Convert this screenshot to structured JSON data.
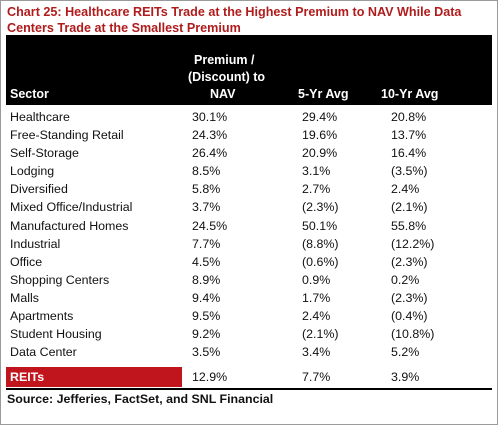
{
  "title": {
    "line1": "Chart 25: Healthcare REITs Trade at the Highest Premium to NAV While Data",
    "line2": "Centers Trade at the Smallest Premium"
  },
  "table": {
    "headers": {
      "sector": "Sector",
      "premium_line1": "Premium /",
      "premium_line2": "(Discount) to",
      "premium_line3": "NAV",
      "five_yr": "5-Yr Avg",
      "ten_yr": "10-Yr Avg"
    },
    "rows": [
      {
        "sector": "Healthcare",
        "premium": "30.1%",
        "five_yr": "29.4%",
        "ten_yr": "20.8%"
      },
      {
        "sector": "Free-Standing Retail",
        "premium": "24.3%",
        "five_yr": "19.6%",
        "ten_yr": "13.7%"
      },
      {
        "sector": "Self-Storage",
        "premium": "26.4%",
        "five_yr": "20.9%",
        "ten_yr": "16.4%"
      },
      {
        "sector": "Lodging",
        "premium": "8.5%",
        "five_yr": "3.1%",
        "ten_yr": "(3.5%)"
      },
      {
        "sector": "Diversified",
        "premium": "5.8%",
        "five_yr": "2.7%",
        "ten_yr": "2.4%"
      },
      {
        "sector": "Mixed Office/Industrial",
        "premium": "3.7%",
        "five_yr": "(2.3%)",
        "ten_yr": "(2.1%)"
      },
      {
        "sector": "Manufactured Homes",
        "premium": "24.5%",
        "five_yr": "50.1%",
        "ten_yr": "55.8%"
      },
      {
        "sector": "Industrial",
        "premium": "7.7%",
        "five_yr": "(8.8%)",
        "ten_yr": "(12.2%)"
      },
      {
        "sector": "Office",
        "premium": "4.5%",
        "five_yr": "(0.6%)",
        "ten_yr": "(2.3%)"
      },
      {
        "sector": "Shopping Centers",
        "premium": "8.9%",
        "five_yr": "0.9%",
        "ten_yr": "0.2%"
      },
      {
        "sector": "Malls",
        "premium": "9.4%",
        "five_yr": "1.7%",
        "ten_yr": "(2.3%)"
      },
      {
        "sector": "Apartments",
        "premium": "9.5%",
        "five_yr": "2.4%",
        "ten_yr": "(0.4%)"
      },
      {
        "sector": "Student Housing",
        "premium": "9.2%",
        "five_yr": "(2.1%)",
        "ten_yr": "(10.8%)"
      },
      {
        "sector": "Data Center",
        "premium": "3.5%",
        "five_yr": "3.4%",
        "ten_yr": "5.2%"
      }
    ],
    "total": {
      "sector": "REITs",
      "premium": "12.9%",
      "five_yr": "7.7%",
      "ten_yr": "3.9%"
    }
  },
  "source": "Source: Jefferies, FactSet, and SNL Financial",
  "colors": {
    "title": "#b01c1c",
    "header_bg": "#000000",
    "total_label_bg": "#c0151c"
  }
}
